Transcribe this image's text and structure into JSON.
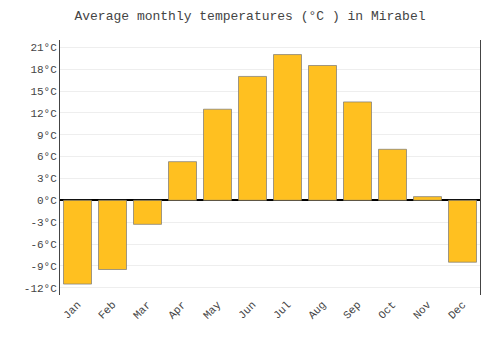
{
  "chart_data": {
    "type": "bar",
    "title": "Average monthly temperatures (°C ) in Mirabel",
    "categories": [
      "Jan",
      "Feb",
      "Mar",
      "Apr",
      "May",
      "Jun",
      "Jul",
      "Aug",
      "Sep",
      "Oct",
      "Nov",
      "Dec"
    ],
    "values": [
      -11.5,
      -9.5,
      -3.3,
      5.3,
      12.5,
      17.0,
      20.0,
      18.5,
      13.5,
      7.0,
      0.5,
      -8.5
    ],
    "color": "#FFC020",
    "ylim": [
      -13,
      22
    ],
    "yticks": [
      {
        "value": -12,
        "label": "-12°C"
      },
      {
        "value": -9,
        "label": "-9°C"
      },
      {
        "value": -6,
        "label": "-6°C"
      },
      {
        "value": -3,
        "label": "-3°C"
      },
      {
        "value": 0,
        "label": "0°C"
      },
      {
        "value": 3,
        "label": "3°C"
      },
      {
        "value": 6,
        "label": "6°C"
      },
      {
        "value": 9,
        "label": "9°C"
      },
      {
        "value": 12,
        "label": "12°C"
      },
      {
        "value": 15,
        "label": "15°C"
      },
      {
        "value": 18,
        "label": "18°C"
      },
      {
        "value": 21,
        "label": "21°C"
      }
    ],
    "grid": true
  }
}
